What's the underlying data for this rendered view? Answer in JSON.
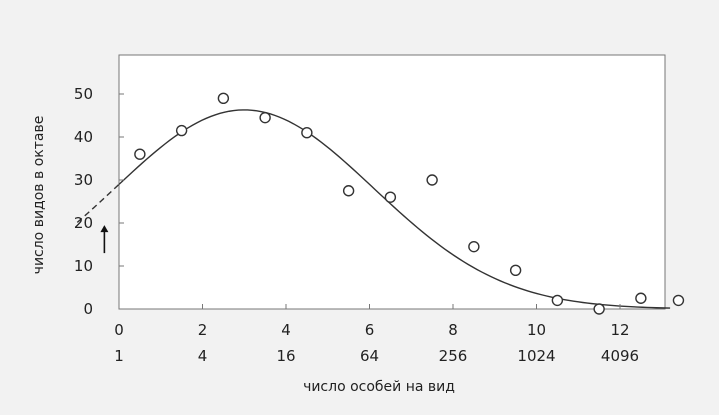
{
  "chart_data": {
    "type": "scatter",
    "xlabel": "число особей на вид",
    "ylabel": "число видов в октаве",
    "xlim": [
      0,
      13.2
    ],
    "ylim": [
      0,
      50
    ],
    "y_ticks": [
      0,
      10,
      20,
      30,
      40,
      50
    ],
    "x_ticks": [
      {
        "x": 0,
        "label": "0",
        "sub": "1"
      },
      {
        "x": 2,
        "label": "2",
        "sub": "4"
      },
      {
        "x": 4,
        "label": "4",
        "sub": "16"
      },
      {
        "x": 6,
        "label": "6",
        "sub": "64"
      },
      {
        "x": 8,
        "label": "8",
        "sub": "256"
      },
      {
        "x": 10,
        "label": "10",
        "sub": "1024"
      },
      {
        "x": 12,
        "label": "12",
        "sub": "4096"
      }
    ],
    "points": [
      {
        "x": 0.5,
        "y": 36
      },
      {
        "x": 1.5,
        "y": 41.5
      },
      {
        "x": 2.5,
        "y": 49
      },
      {
        "x": 3.5,
        "y": 44.5
      },
      {
        "x": 4.5,
        "y": 41
      },
      {
        "x": 5.5,
        "y": 27.5
      },
      {
        "x": 6.5,
        "y": 26
      },
      {
        "x": 7.5,
        "y": 30
      },
      {
        "x": 8.5,
        "y": 14.5
      },
      {
        "x": 9.5,
        "y": 9
      },
      {
        "x": 10.5,
        "y": 2
      },
      {
        "x": 11.5,
        "y": 0
      },
      {
        "x": 12.5,
        "y": 2.5
      },
      {
        "x": 13.4,
        "y": 2
      }
    ],
    "fit_curve": {
      "peak_x": 3.0,
      "peak_y": 46.3,
      "sigma": 3.1,
      "solid_range": [
        0,
        13.2
      ],
      "dashed_range": [
        -1.0,
        0
      ]
    },
    "annotation": {
      "type": "arrow",
      "x": -0.35,
      "y_from": 13,
      "y_to": 19.5
    },
    "grid": false,
    "legend": "none"
  }
}
